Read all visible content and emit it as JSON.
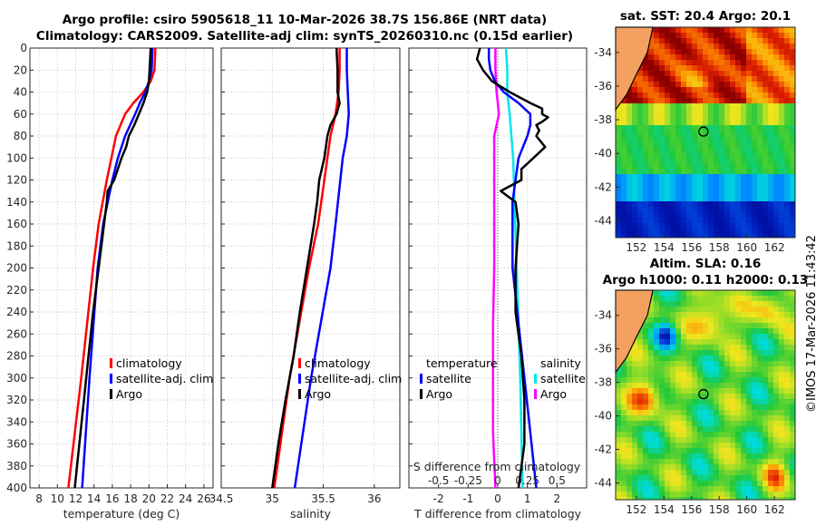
{
  "title_line1": "Argo profile: csiro 5905618_11 10-Mar-2026 38.7S 156.86E (NRT data)",
  "title_line2": "Climatology: CARS2009. Satellite-adj clim: synTS_20260310.nc (0.15d earlier)",
  "watermark": "©IMOS 17-Mar-2026 11:43:42",
  "colors": {
    "climatology": "#ff0000",
    "satellite": "#0000ff",
    "argo": "#000000",
    "s_satellite": "#00e5ee",
    "s_argo": "#ff00ff"
  },
  "depth_ticks": [
    "0",
    "20",
    "40",
    "60",
    "80",
    "100",
    "120",
    "140",
    "160",
    "180",
    "200",
    "220",
    "240",
    "260",
    "280",
    "300",
    "320",
    "340",
    "360",
    "380",
    "400"
  ],
  "chart_data": [
    {
      "type": "line",
      "id": "temperature",
      "xlabel": "temperature (deg C)",
      "ylabel": "depth",
      "xlim": [
        7,
        27
      ],
      "ylim": [
        400,
        0
      ],
      "xticks": [
        "8",
        "10",
        "12",
        "14",
        "16",
        "18",
        "20",
        "22",
        "24",
        "26"
      ],
      "xtick_values": [
        8,
        10,
        12,
        14,
        16,
        18,
        20,
        22,
        24,
        26
      ],
      "legend": [
        "climatology",
        "satellite-adj. clim",
        "Argo"
      ],
      "series": [
        {
          "name": "climatology",
          "depth": [
            0,
            20,
            30,
            40,
            50,
            60,
            80,
            100,
            120,
            160,
            200,
            300,
            400
          ],
          "values": [
            20.7,
            20.6,
            20.2,
            19.4,
            18.3,
            17.4,
            16.4,
            15.9,
            15.4,
            14.5,
            13.9,
            12.6,
            11.2
          ]
        },
        {
          "name": "satellite-adj. clim",
          "depth": [
            0,
            20,
            30,
            40,
            50,
            60,
            80,
            100,
            120,
            160,
            200,
            300,
            400
          ],
          "values": [
            20.4,
            20.3,
            20.0,
            19.6,
            19.0,
            18.5,
            17.4,
            16.6,
            16.0,
            15.0,
            14.4,
            13.5,
            12.7
          ]
        },
        {
          "name": "Argo",
          "depth": [
            0,
            15,
            30,
            40,
            50,
            60,
            70,
            80,
            90,
            100,
            110,
            120,
            130,
            140,
            160,
            180,
            200,
            240,
            280,
            320,
            360,
            400
          ],
          "values": [
            20.2,
            20.1,
            20.0,
            19.8,
            19.4,
            18.9,
            18.4,
            17.8,
            17.5,
            17.0,
            16.6,
            16.2,
            15.5,
            15.4,
            15.1,
            14.8,
            14.5,
            13.9,
            13.4,
            12.9,
            12.4,
            11.9
          ]
        }
      ]
    },
    {
      "type": "line",
      "id": "salinity",
      "xlabel": "salinity",
      "ylabel": "depth",
      "xlim": [
        34.5,
        36.25
      ],
      "ylim": [
        400,
        0
      ],
      "xticks": [
        "34.5",
        "35",
        "35.5",
        "36"
      ],
      "xtick_values": [
        34.5,
        35,
        35.5,
        36
      ],
      "legend": [
        "climatology",
        "satellite-adj. clim",
        "Argo"
      ],
      "series": [
        {
          "name": "climatology",
          "depth": [
            0,
            20,
            40,
            60,
            80,
            100,
            160,
            200,
            300,
            400
          ],
          "values": [
            35.66,
            35.66,
            35.65,
            35.62,
            35.57,
            35.54,
            35.45,
            35.36,
            35.17,
            35.02
          ]
        },
        {
          "name": "satellite-adj. clim",
          "depth": [
            0,
            20,
            40,
            60,
            80,
            100,
            160,
            200,
            300,
            400
          ],
          "values": [
            35.73,
            35.73,
            35.74,
            35.75,
            35.73,
            35.69,
            35.62,
            35.57,
            35.38,
            35.22
          ]
        },
        {
          "name": "Argo",
          "depth": [
            0,
            20,
            40,
            50,
            60,
            70,
            80,
            100,
            120,
            140,
            160,
            200,
            240,
            280,
            320,
            360,
            400
          ],
          "values": [
            35.63,
            35.64,
            35.64,
            35.66,
            35.63,
            35.57,
            35.54,
            35.51,
            35.46,
            35.44,
            35.41,
            35.34,
            35.27,
            35.21,
            35.13,
            35.06,
            35.0
          ]
        }
      ]
    },
    {
      "type": "line",
      "id": "differences",
      "xlabel": "T difference from climatology",
      "xlabel_top": "S difference from climatology",
      "ylabel": "depth",
      "xlim": [
        -3,
        3
      ],
      "ylim": [
        400,
        0
      ],
      "xticks": [
        "-2",
        "-1",
        "0",
        "1",
        "2"
      ],
      "xtick_values": [
        -2,
        -1,
        0,
        1,
        2
      ],
      "s_ticks": [
        "-0.5",
        "-0.25",
        "0",
        "0.25",
        "0.5"
      ],
      "legend_left_title": "temperature",
      "legend_right_title": "salinity",
      "legend": [
        "satellite",
        "Argo",
        "satellite",
        "Argo"
      ],
      "series": [
        {
          "name": "T satellite",
          "depth": [
            0,
            10,
            20,
            30,
            40,
            50,
            60,
            70,
            80,
            100,
            140,
            200,
            300,
            400
          ],
          "values": [
            -0.3,
            -0.3,
            -0.25,
            -0.1,
            0.2,
            0.7,
            1.1,
            1.1,
            1.0,
            0.7,
            0.5,
            0.5,
            0.9,
            1.3
          ]
        },
        {
          "name": "T Argo",
          "depth": [
            0,
            10,
            20,
            30,
            40,
            50,
            55,
            60,
            63,
            67,
            70,
            75,
            80,
            90,
            100,
            110,
            120,
            130,
            140,
            160,
            200,
            240,
            280,
            320,
            360,
            400
          ],
          "values": [
            -0.6,
            -0.7,
            -0.5,
            -0.2,
            0.4,
            1.1,
            1.5,
            1.5,
            1.7,
            1.5,
            1.3,
            1.4,
            1.3,
            1.6,
            1.2,
            0.8,
            0.8,
            0.1,
            0.6,
            0.7,
            0.6,
            0.6,
            0.8,
            0.9,
            0.9,
            0.7
          ]
        },
        {
          "name": "S satellite",
          "depth": [
            0,
            20,
            40,
            60,
            100,
            200,
            300,
            400
          ],
          "values": [
            0.07,
            0.08,
            0.08,
            0.1,
            0.13,
            0.16,
            0.19,
            0.21
          ]
        },
        {
          "name": "S Argo",
          "depth": [
            0,
            20,
            40,
            60,
            80,
            100,
            150,
            200,
            250,
            300,
            350,
            400
          ],
          "values": [
            -0.02,
            -0.02,
            -0.01,
            0.01,
            -0.03,
            -0.03,
            -0.03,
            -0.03,
            -0.04,
            -0.04,
            -0.04,
            -0.02
          ]
        }
      ]
    },
    {
      "type": "heatmap",
      "id": "sst_map",
      "title": "sat. SST: 20.4 Argo: 20.1",
      "xticks": [
        "152",
        "154",
        "156",
        "158",
        "160",
        "162"
      ],
      "yticks": [
        "-34",
        "-36",
        "-38",
        "-40",
        "-42",
        "-44"
      ],
      "xlim": [
        150.5,
        163.5
      ],
      "ylim": [
        -45,
        -32.5
      ],
      "profile_location": [
        156.86,
        -38.7
      ]
    },
    {
      "type": "heatmap",
      "id": "sla_map",
      "title": "Altim. SLA: 0.16",
      "subtitle": "Argo h1000: 0.11 h2000: 0.13",
      "xticks": [
        "152",
        "154",
        "156",
        "158",
        "160",
        "162"
      ],
      "yticks": [
        "-34",
        "-36",
        "-38",
        "-40",
        "-42",
        "-44"
      ],
      "xlim": [
        150.5,
        163.5
      ],
      "ylim": [
        -45,
        -32.5
      ],
      "profile_location": [
        156.86,
        -38.7
      ]
    }
  ]
}
